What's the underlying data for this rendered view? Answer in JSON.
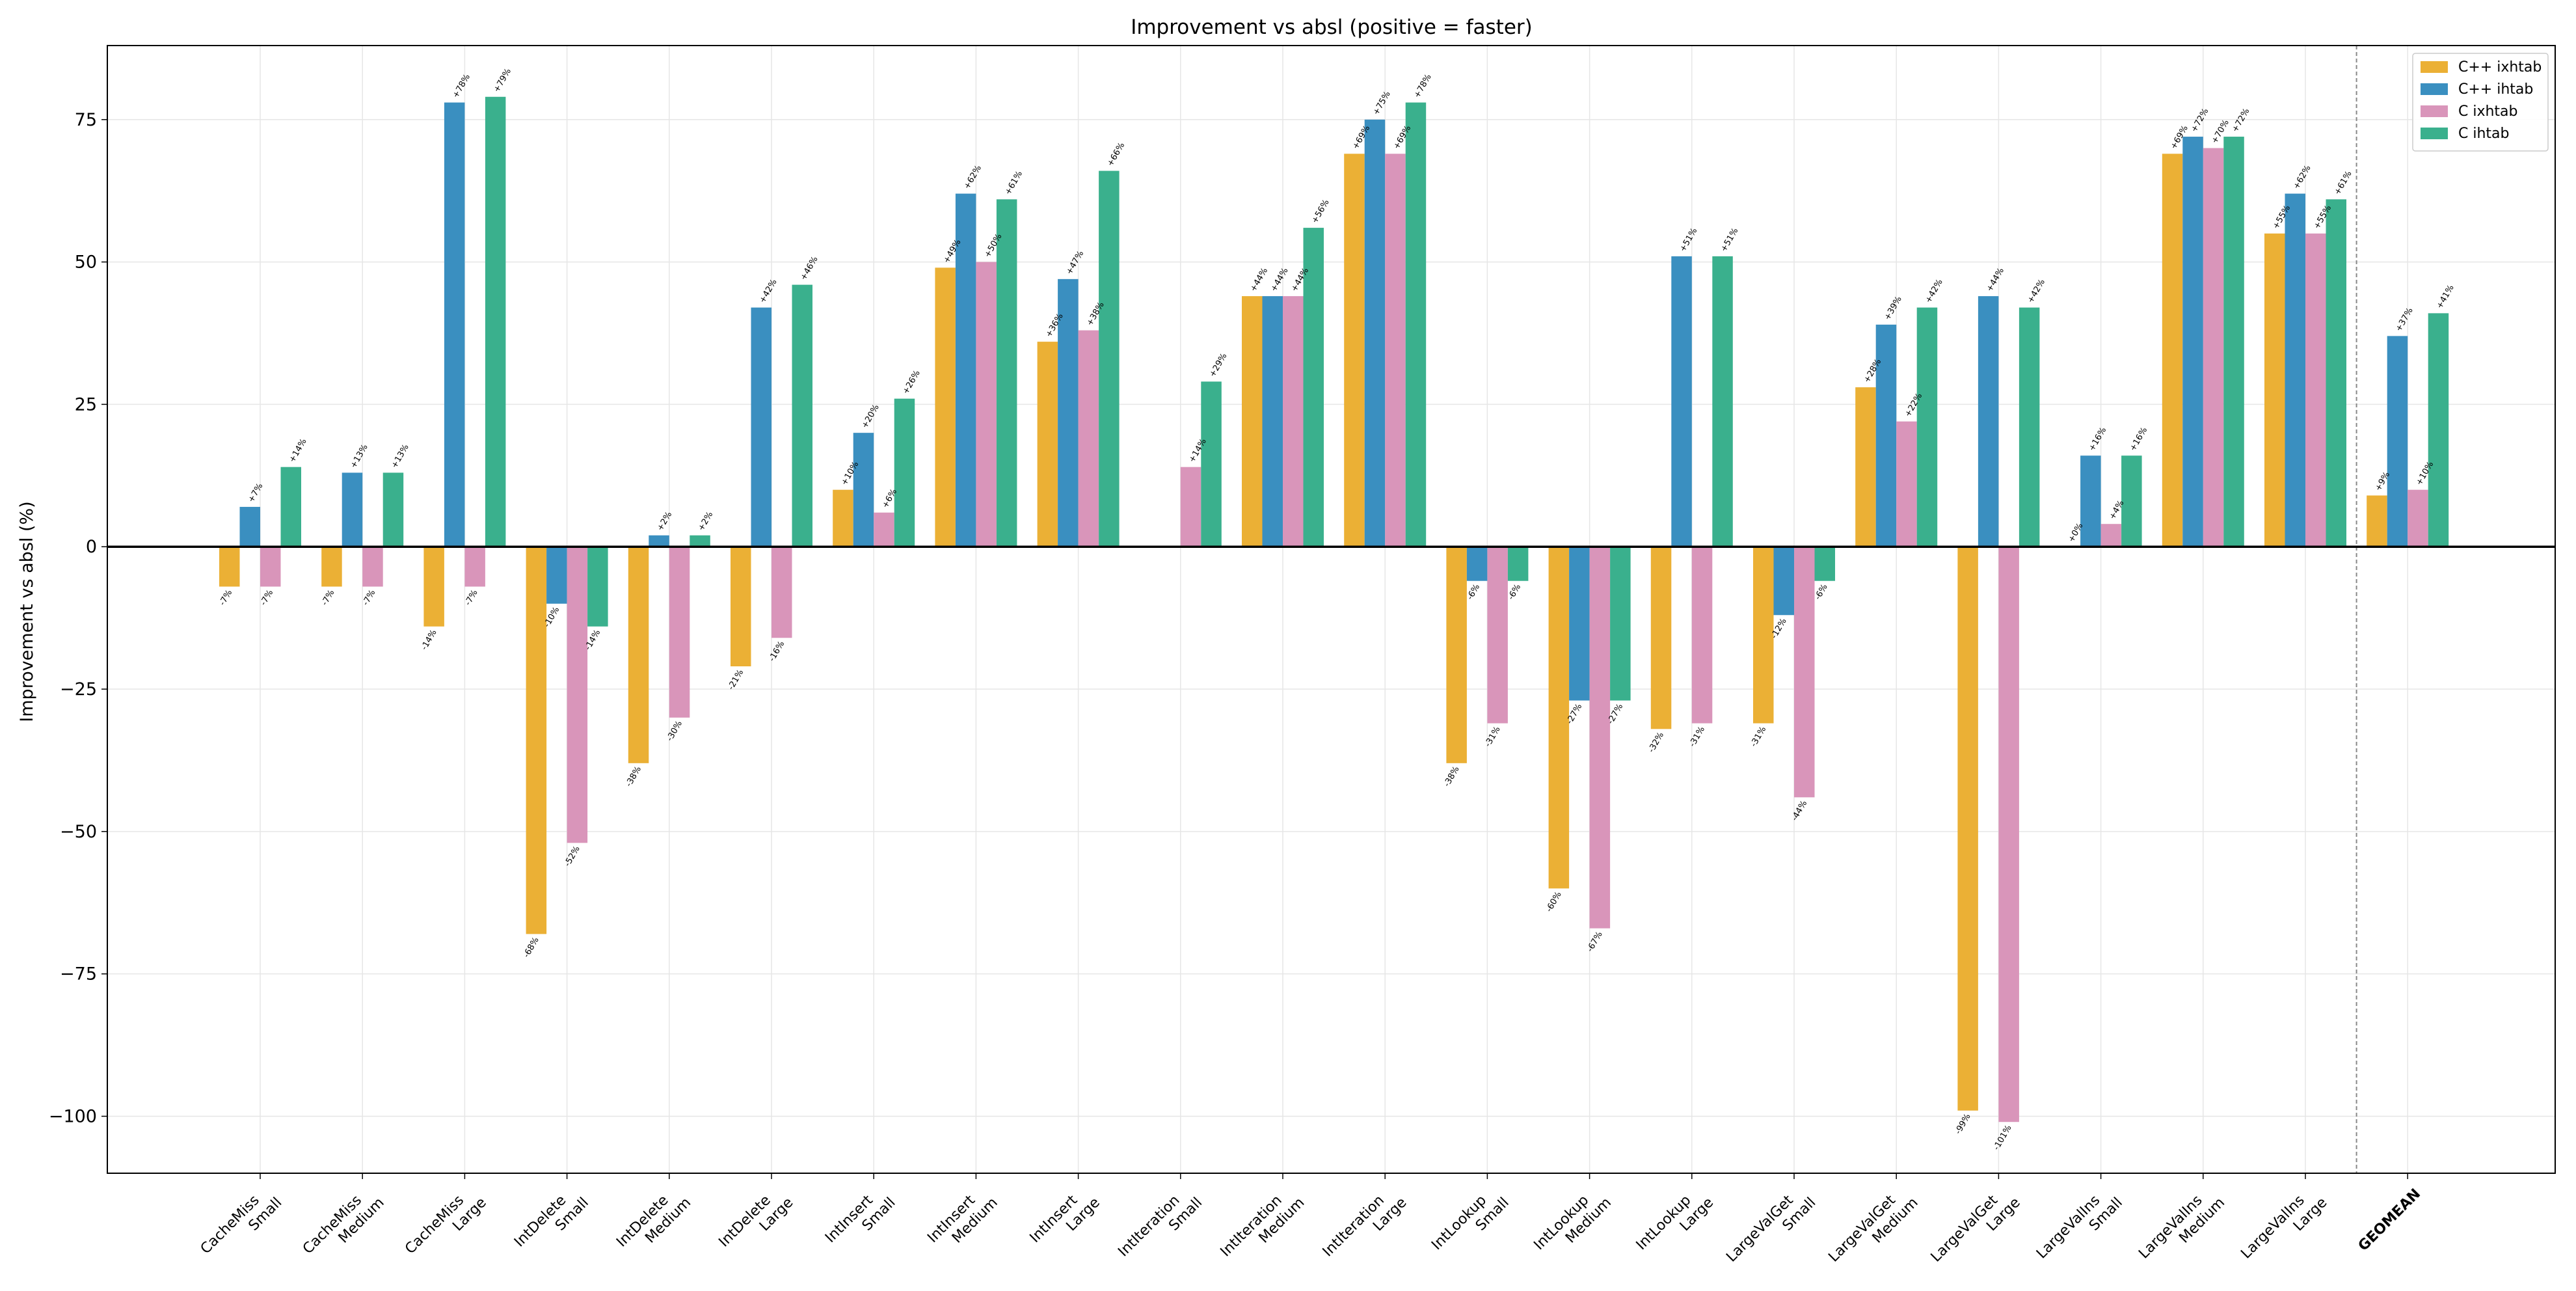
{
  "chart_data": {
    "type": "bar",
    "title": "Improvement vs absl (positive = faster)",
    "ylabel": "Improvement vs absl (%)",
    "xlabel": "",
    "ylim": [
      -110,
      88
    ],
    "yticks": [
      -100,
      -75,
      -50,
      -25,
      0,
      25,
      50,
      75
    ],
    "ytick_labels": [
      "−100",
      "−75",
      "−50",
      "−25",
      "0",
      "25",
      "50",
      "75"
    ],
    "grid": true,
    "legend_position": "top-right",
    "categories": [
      [
        "CacheMiss",
        "Small"
      ],
      [
        "CacheMiss",
        "Medium"
      ],
      [
        "CacheMiss",
        "Large"
      ],
      [
        "IntDelete",
        "Small"
      ],
      [
        "IntDelete",
        "Medium"
      ],
      [
        "IntDelete",
        "Large"
      ],
      [
        "IntInsert",
        "Small"
      ],
      [
        "IntInsert",
        "Medium"
      ],
      [
        "IntInsert",
        "Large"
      ],
      [
        "IntIteration",
        "Small"
      ],
      [
        "IntIteration",
        "Medium"
      ],
      [
        "IntIteration",
        "Large"
      ],
      [
        "IntLookup",
        "Small"
      ],
      [
        "IntLookup",
        "Medium"
      ],
      [
        "IntLookup",
        "Large"
      ],
      [
        "LargeValGet",
        "Small"
      ],
      [
        "LargeValGet",
        "Medium"
      ],
      [
        "LargeValGet",
        "Large"
      ],
      [
        "LargeValIns",
        "Small"
      ],
      [
        "LargeValIns",
        "Medium"
      ],
      [
        "LargeValIns",
        "Large"
      ],
      [
        "GEOMEAN"
      ]
    ],
    "emphasized_category": "GEOMEAN",
    "series": [
      {
        "name": "C++ ixhtab",
        "color": "#EBB035",
        "values": [
          -7,
          -7,
          -14,
          -68,
          -38,
          -21,
          10,
          49,
          36,
          null,
          44,
          69,
          -38,
          -60,
          -32,
          -31,
          28,
          -99,
          0,
          69,
          55,
          9
        ],
        "labels": [
          "-7%",
          "-7%",
          "-14%",
          "-68%",
          "-38%",
          "-21%",
          "+10%",
          "+49%",
          "+36%",
          null,
          "+44%",
          "+69%",
          "-38%",
          "-60%",
          "-32%",
          "-31%",
          "+28%",
          "-99%",
          "+0%",
          "+69%",
          "+55%",
          "+9%"
        ]
      },
      {
        "name": "C++ ihtab",
        "color": "#3A8FC0",
        "values": [
          7,
          13,
          78,
          -10,
          2,
          42,
          20,
          62,
          47,
          null,
          44,
          75,
          -6,
          -27,
          51,
          -12,
          39,
          44,
          16,
          72,
          62,
          37
        ],
        "labels": [
          "+7%",
          "+13%",
          "+78%",
          "-10%",
          "+2%",
          "+42%",
          "+20%",
          "+62%",
          "+47%",
          null,
          "+44%",
          "+75%",
          "-6%",
          "-27%",
          "+51%",
          "-12%",
          "+39%",
          "+44%",
          "+16%",
          "+72%",
          "+62%",
          "+37%"
        ]
      },
      {
        "name": "C ixhtab",
        "color": "#D995BA",
        "values": [
          -7,
          -7,
          -7,
          -52,
          -30,
          -16,
          6,
          50,
          38,
          14,
          44,
          69,
          -31,
          -67,
          -31,
          -44,
          22,
          -101,
          4,
          70,
          55,
          10
        ],
        "labels": [
          "-7%",
          "-7%",
          "-7%",
          "-52%",
          "-30%",
          "-16%",
          "+6%",
          "+50%",
          "+38%",
          "+14%",
          "+44%",
          "+69%",
          "-31%",
          "-67%",
          "-31%",
          "-44%",
          "+22%",
          "-101%",
          "+4%",
          "+70%",
          "+55%",
          "+10%"
        ]
      },
      {
        "name": "C ihtab",
        "color": "#3AB08D",
        "values": [
          14,
          13,
          79,
          -14,
          2,
          46,
          26,
          61,
          66,
          29,
          56,
          78,
          -6,
          -27,
          51,
          -6,
          42,
          42,
          16,
          72,
          61,
          41
        ],
        "labels": [
          "+14%",
          "+13%",
          "+79%",
          "-14%",
          "+2%",
          "+46%",
          "+26%",
          "+61%",
          "+66%",
          "+29%",
          "+56%",
          "+78%",
          "-6%",
          "-27%",
          "+51%",
          "-6%",
          "+42%",
          "+42%",
          "+16%",
          "+72%",
          "+61%",
          "+41%"
        ]
      }
    ]
  }
}
